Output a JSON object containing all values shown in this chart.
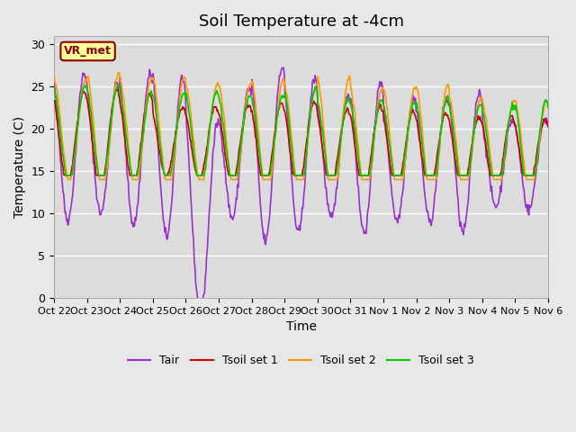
{
  "title": "Soil Temperature at -4cm",
  "xlabel": "Time",
  "ylabel": "Temperature (C)",
  "ylim": [
    0,
    31
  ],
  "yticks": [
    0,
    5,
    10,
    15,
    20,
    25,
    30
  ],
  "background_color": "#e8e8e8",
  "plot_bg_color": "#dcdcdc",
  "grid_color": "#ffffff",
  "annotation_label": "VR_met",
  "annotation_color": "#8B0000",
  "annotation_bg": "#ffff99",
  "colors": {
    "Tair": "#9932CC",
    "Tsoil1": "#cc0000",
    "Tsoil2": "#ff9900",
    "Tsoil3": "#00cc00"
  },
  "linewidths": {
    "Tair": 1.2,
    "Tsoil1": 1.2,
    "Tsoil2": 1.2,
    "Tsoil3": 1.2
  },
  "x_tick_labels": [
    "Oct 22",
    "Oct 23",
    "Oct 24",
    "Oct 25",
    "Oct 26",
    "Oct 27",
    "Oct 28",
    "Oct 29",
    "Oct 30",
    "Oct 31",
    "Nov 1",
    "Nov 2",
    "Nov 3",
    "Nov 4",
    "Nov 5",
    "Nov 6"
  ],
  "num_days": 15,
  "points_per_day": 48
}
